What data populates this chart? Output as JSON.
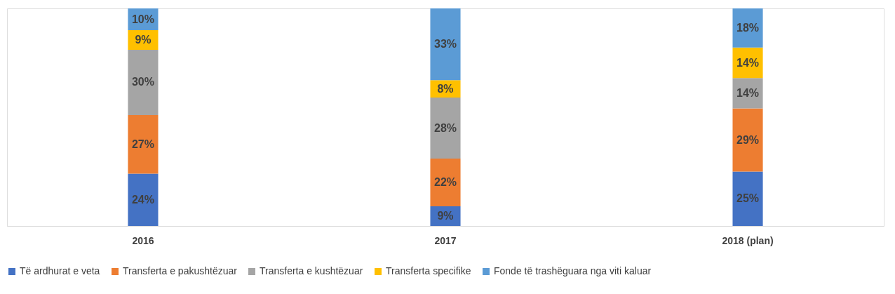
{
  "chart_data": {
    "type": "bar",
    "stacked": true,
    "categories": [
      "2016",
      "2017",
      "2018 (plan)"
    ],
    "ylim": [
      0,
      100
    ],
    "legend": "bottom",
    "grid": false,
    "tick_labels": "x",
    "series": [
      {
        "name": "Të ardhurat e veta",
        "color": "#4472c4",
        "values": [
          24,
          9,
          25
        ],
        "value_labels": [
          "24%",
          "9%",
          "25%"
        ]
      },
      {
        "name": "Transferta e pakushtëzuar",
        "color": "#ed7d31",
        "values": [
          27,
          22,
          29
        ],
        "value_labels": [
          "27%",
          "22%",
          "29%"
        ]
      },
      {
        "name": "Transferta e kushtëzuar",
        "color": "#a5a5a5",
        "values": [
          30,
          28,
          14
        ],
        "value_labels": [
          "30%",
          "28%",
          "14%"
        ]
      },
      {
        "name": "Transferta specifike",
        "color": "#ffc000",
        "values": [
          9,
          8,
          14
        ],
        "value_labels": [
          "9%",
          "8%",
          "14%"
        ]
      },
      {
        "name": "Fonde të trashëguara nga viti kaluar",
        "color": "#5b9bd5",
        "values": [
          10,
          33,
          18
        ],
        "value_labels": [
          "10%",
          "33%",
          "18%"
        ]
      }
    ]
  }
}
